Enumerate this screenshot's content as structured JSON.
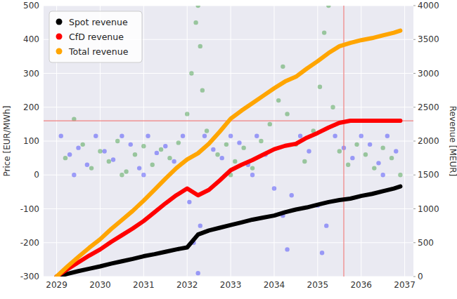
{
  "chart_data": {
    "type": "line",
    "y_label": "Price  [EUR/MWh]",
    "y2_label": "Revenue  [MEUR]",
    "xlim": [
      2028.7,
      2037.2
    ],
    "xticks": [
      2029,
      2030,
      2031,
      2032,
      2033,
      2034,
      2035,
      2036,
      2037
    ],
    "ylim": [
      -300,
      500
    ],
    "yticks": [
      -300,
      -200,
      -100,
      0,
      100,
      200,
      300,
      400,
      500
    ],
    "y2lim": [
      0,
      4000
    ],
    "y2ticks": [
      0,
      500,
      1000,
      1500,
      2000,
      2500,
      3000,
      3500,
      4000
    ],
    "grid": true,
    "legend": "upper left",
    "x": [
      2029.0,
      2029.25,
      2029.5,
      2029.75,
      2030.0,
      2030.25,
      2030.5,
      2030.75,
      2031.0,
      2031.25,
      2031.5,
      2031.75,
      2032.0,
      2032.25,
      2032.5,
      2032.75,
      2033.0,
      2033.25,
      2033.5,
      2033.75,
      2034.0,
      2034.25,
      2034.5,
      2034.75,
      2035.0,
      2035.25,
      2035.5,
      2035.75,
      2036.0,
      2036.25,
      2036.5,
      2036.75,
      2036.9
    ],
    "series": [
      {
        "name": "Spot revenue",
        "color": "#000000",
        "type": "line",
        "axis": "y2",
        "marker": "o",
        "values": [
          0,
          40,
          80,
          115,
          150,
          190,
          225,
          260,
          300,
          330,
          365,
          400,
          430,
          620,
          680,
          720,
          760,
          800,
          840,
          870,
          900,
          950,
          990,
          1020,
          1060,
          1100,
          1130,
          1150,
          1190,
          1220,
          1260,
          1300,
          1330
        ]
      },
      {
        "name": "CfD revenue",
        "color": "#ff0000",
        "type": "line",
        "axis": "y2",
        "marker": "o",
        "values": [
          0,
          110,
          210,
          310,
          400,
          510,
          610,
          710,
          820,
          950,
          1080,
          1200,
          1300,
          1200,
          1280,
          1420,
          1570,
          1650,
          1720,
          1800,
          1880,
          1930,
          1960,
          2050,
          2120,
          2200,
          2270,
          2300,
          2300,
          2300,
          2300,
          2300,
          2300
        ]
      },
      {
        "name": "Total revenue",
        "color": "#ffa500",
        "type": "line",
        "axis": "y2",
        "marker": "o",
        "values": [
          0,
          150,
          290,
          425,
          550,
          700,
          835,
          970,
          1120,
          1280,
          1445,
          1600,
          1730,
          1820,
          1960,
          2140,
          2330,
          2450,
          2560,
          2670,
          2780,
          2880,
          2950,
          3070,
          3180,
          3300,
          3400,
          3450,
          3490,
          3520,
          3560,
          3600,
          3630
        ]
      },
      {
        "color": "#008000",
        "type": "scatter",
        "marker": "o",
        "x": [
          2029.2,
          2029.4,
          2029.6,
          2029.8,
          2030.0,
          2030.2,
          2030.4,
          2030.6,
          2030.8,
          2031.0,
          2031.2,
          2031.4,
          2031.6,
          2031.8,
          2032.0,
          2032.1,
          2032.2,
          2032.25,
          2032.3,
          2032.35,
          2032.45,
          2032.7,
          2032.9,
          2033.1,
          2033.3,
          2033.5,
          2033.7,
          2033.9,
          2034.1,
          2034.2,
          2034.3,
          2034.5,
          2034.7,
          2034.9,
          2035.05,
          2035.15,
          2035.25,
          2035.35,
          2035.5,
          2035.7,
          2035.9,
          2036.1,
          2036.3,
          2036.5,
          2036.7,
          2036.9,
          2030.5,
          2033.0
        ],
        "values": [
          50,
          165,
          90,
          20,
          70,
          40,
          100,
          10,
          60,
          85,
          30,
          75,
          50,
          95,
          180,
          300,
          450,
          500,
          380,
          250,
          130,
          60,
          90,
          40,
          80,
          20,
          100,
          150,
          220,
          320,
          180,
          90,
          40,
          130,
          260,
          420,
          500,
          200,
          70,
          30,
          90,
          60,
          20,
          80,
          50,
          0,
          0,
          0
        ]
      },
      {
        "color": "#0000ff",
        "type": "scatter",
        "marker": "o",
        "x": [
          2029.1,
          2029.3,
          2029.5,
          2029.7,
          2029.9,
          2030.1,
          2030.3,
          2030.5,
          2030.7,
          2030.9,
          2031.1,
          2031.3,
          2031.5,
          2031.7,
          2031.9,
          2032.05,
          2032.15,
          2032.25,
          2032.3,
          2032.4,
          2032.6,
          2032.8,
          2033.0,
          2033.2,
          2033.4,
          2033.6,
          2033.8,
          2034.0,
          2034.2,
          2034.3,
          2034.4,
          2034.6,
          2034.8,
          2035.0,
          2035.1,
          2035.2,
          2035.4,
          2035.6,
          2035.8,
          2036.0,
          2036.2,
          2036.4,
          2036.6,
          2036.8,
          2029.4,
          2031.0,
          2033.5,
          2036.5
        ],
        "values": [
          115,
          60,
          80,
          30,
          115,
          70,
          45,
          115,
          90,
          20,
          115,
          65,
          85,
          40,
          115,
          -80,
          -200,
          -290,
          -150,
          115,
          75,
          50,
          115,
          95,
          30,
          115,
          60,
          -40,
          -120,
          -220,
          -60,
          115,
          70,
          -90,
          -230,
          -150,
          115,
          80,
          50,
          115,
          90,
          35,
          115,
          70,
          0,
          0,
          0,
          0
        ]
      }
    ],
    "reference_lines": [
      {
        "y": 160,
        "color": "#f08080"
      },
      {
        "x": 2035.6,
        "color": "#f08080"
      }
    ]
  }
}
